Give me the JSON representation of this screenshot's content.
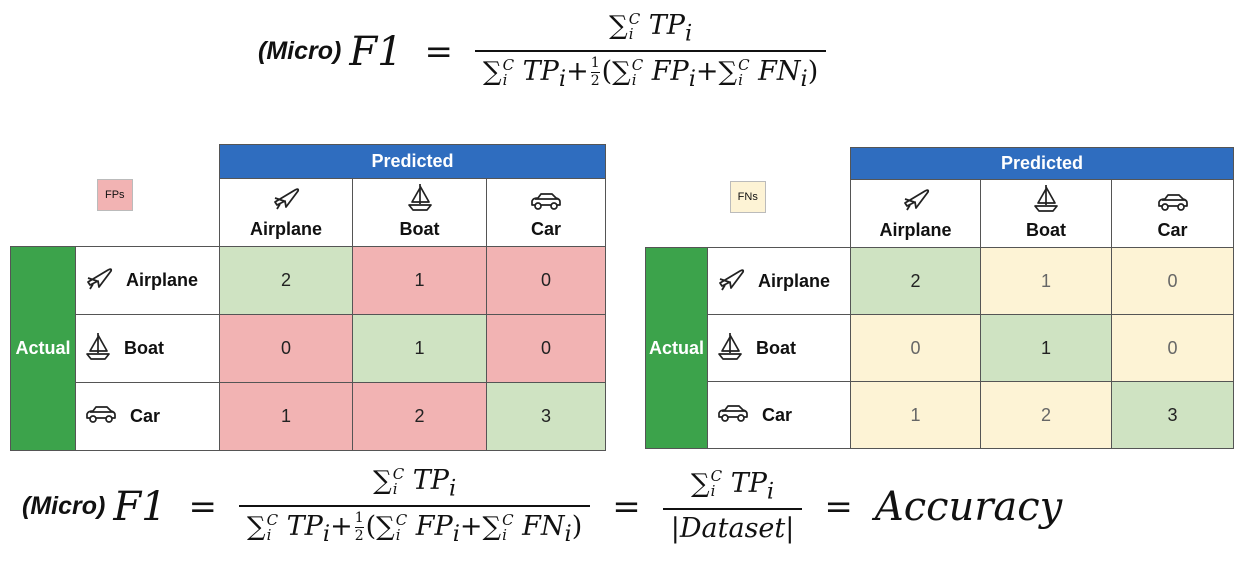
{
  "top_formula": {
    "prefix": "(Micro)",
    "lhs": "F1",
    "equals": "=",
    "numerator": "TP",
    "denominator_lead": "TP",
    "fp": "FP",
    "fn": "FN",
    "sub": "i",
    "sup": "C",
    "half_num": "1",
    "half_den": "2"
  },
  "left_matrix": {
    "legend": "FPs",
    "predicted": "Predicted",
    "actual": "Actual",
    "columns": [
      {
        "label": "Airplane",
        "icon": "airplane-icon"
      },
      {
        "label": "Boat",
        "icon": "boat-icon"
      },
      {
        "label": "Car",
        "icon": "car-icon"
      }
    ],
    "rows": [
      {
        "label": "Airplane",
        "icon": "airplane-icon",
        "cells": [
          "2",
          "1",
          "0"
        ]
      },
      {
        "label": "Boat",
        "icon": "boat-icon",
        "cells": [
          "0",
          "1",
          "0"
        ]
      },
      {
        "label": "Car",
        "icon": "car-icon",
        "cells": [
          "1",
          "2",
          "3"
        ]
      }
    ]
  },
  "right_matrix": {
    "legend": "FNs",
    "predicted": "Predicted",
    "actual": "Actual",
    "columns": [
      {
        "label": "Airplane",
        "icon": "airplane-icon"
      },
      {
        "label": "Boat",
        "icon": "boat-icon"
      },
      {
        "label": "Car",
        "icon": "car-icon"
      }
    ],
    "rows": [
      {
        "label": "Airplane",
        "icon": "airplane-icon",
        "cells": [
          "2",
          "1",
          "0"
        ]
      },
      {
        "label": "Boat",
        "icon": "boat-icon",
        "cells": [
          "0",
          "1",
          "0"
        ]
      },
      {
        "label": "Car",
        "icon": "car-icon",
        "cells": [
          "1",
          "2",
          "3"
        ]
      }
    ]
  },
  "bottom_formula": {
    "prefix": "(Micro)",
    "lhs": "F1",
    "equals": "=",
    "numerator": "TP",
    "denominator_lead": "TP",
    "fp": "FP",
    "fn": "FN",
    "sub": "i",
    "sup": "C",
    "half_num": "1",
    "half_den": "2",
    "dataset": "|Dataset|",
    "result": "Accuracy"
  },
  "colors": {
    "header_blue": "#2f6dbf",
    "actual_green": "#3ca34b",
    "true_positive": "#cfe3c2",
    "false_positive": "#f2b3b3",
    "false_negative": "#fdf3d5"
  }
}
